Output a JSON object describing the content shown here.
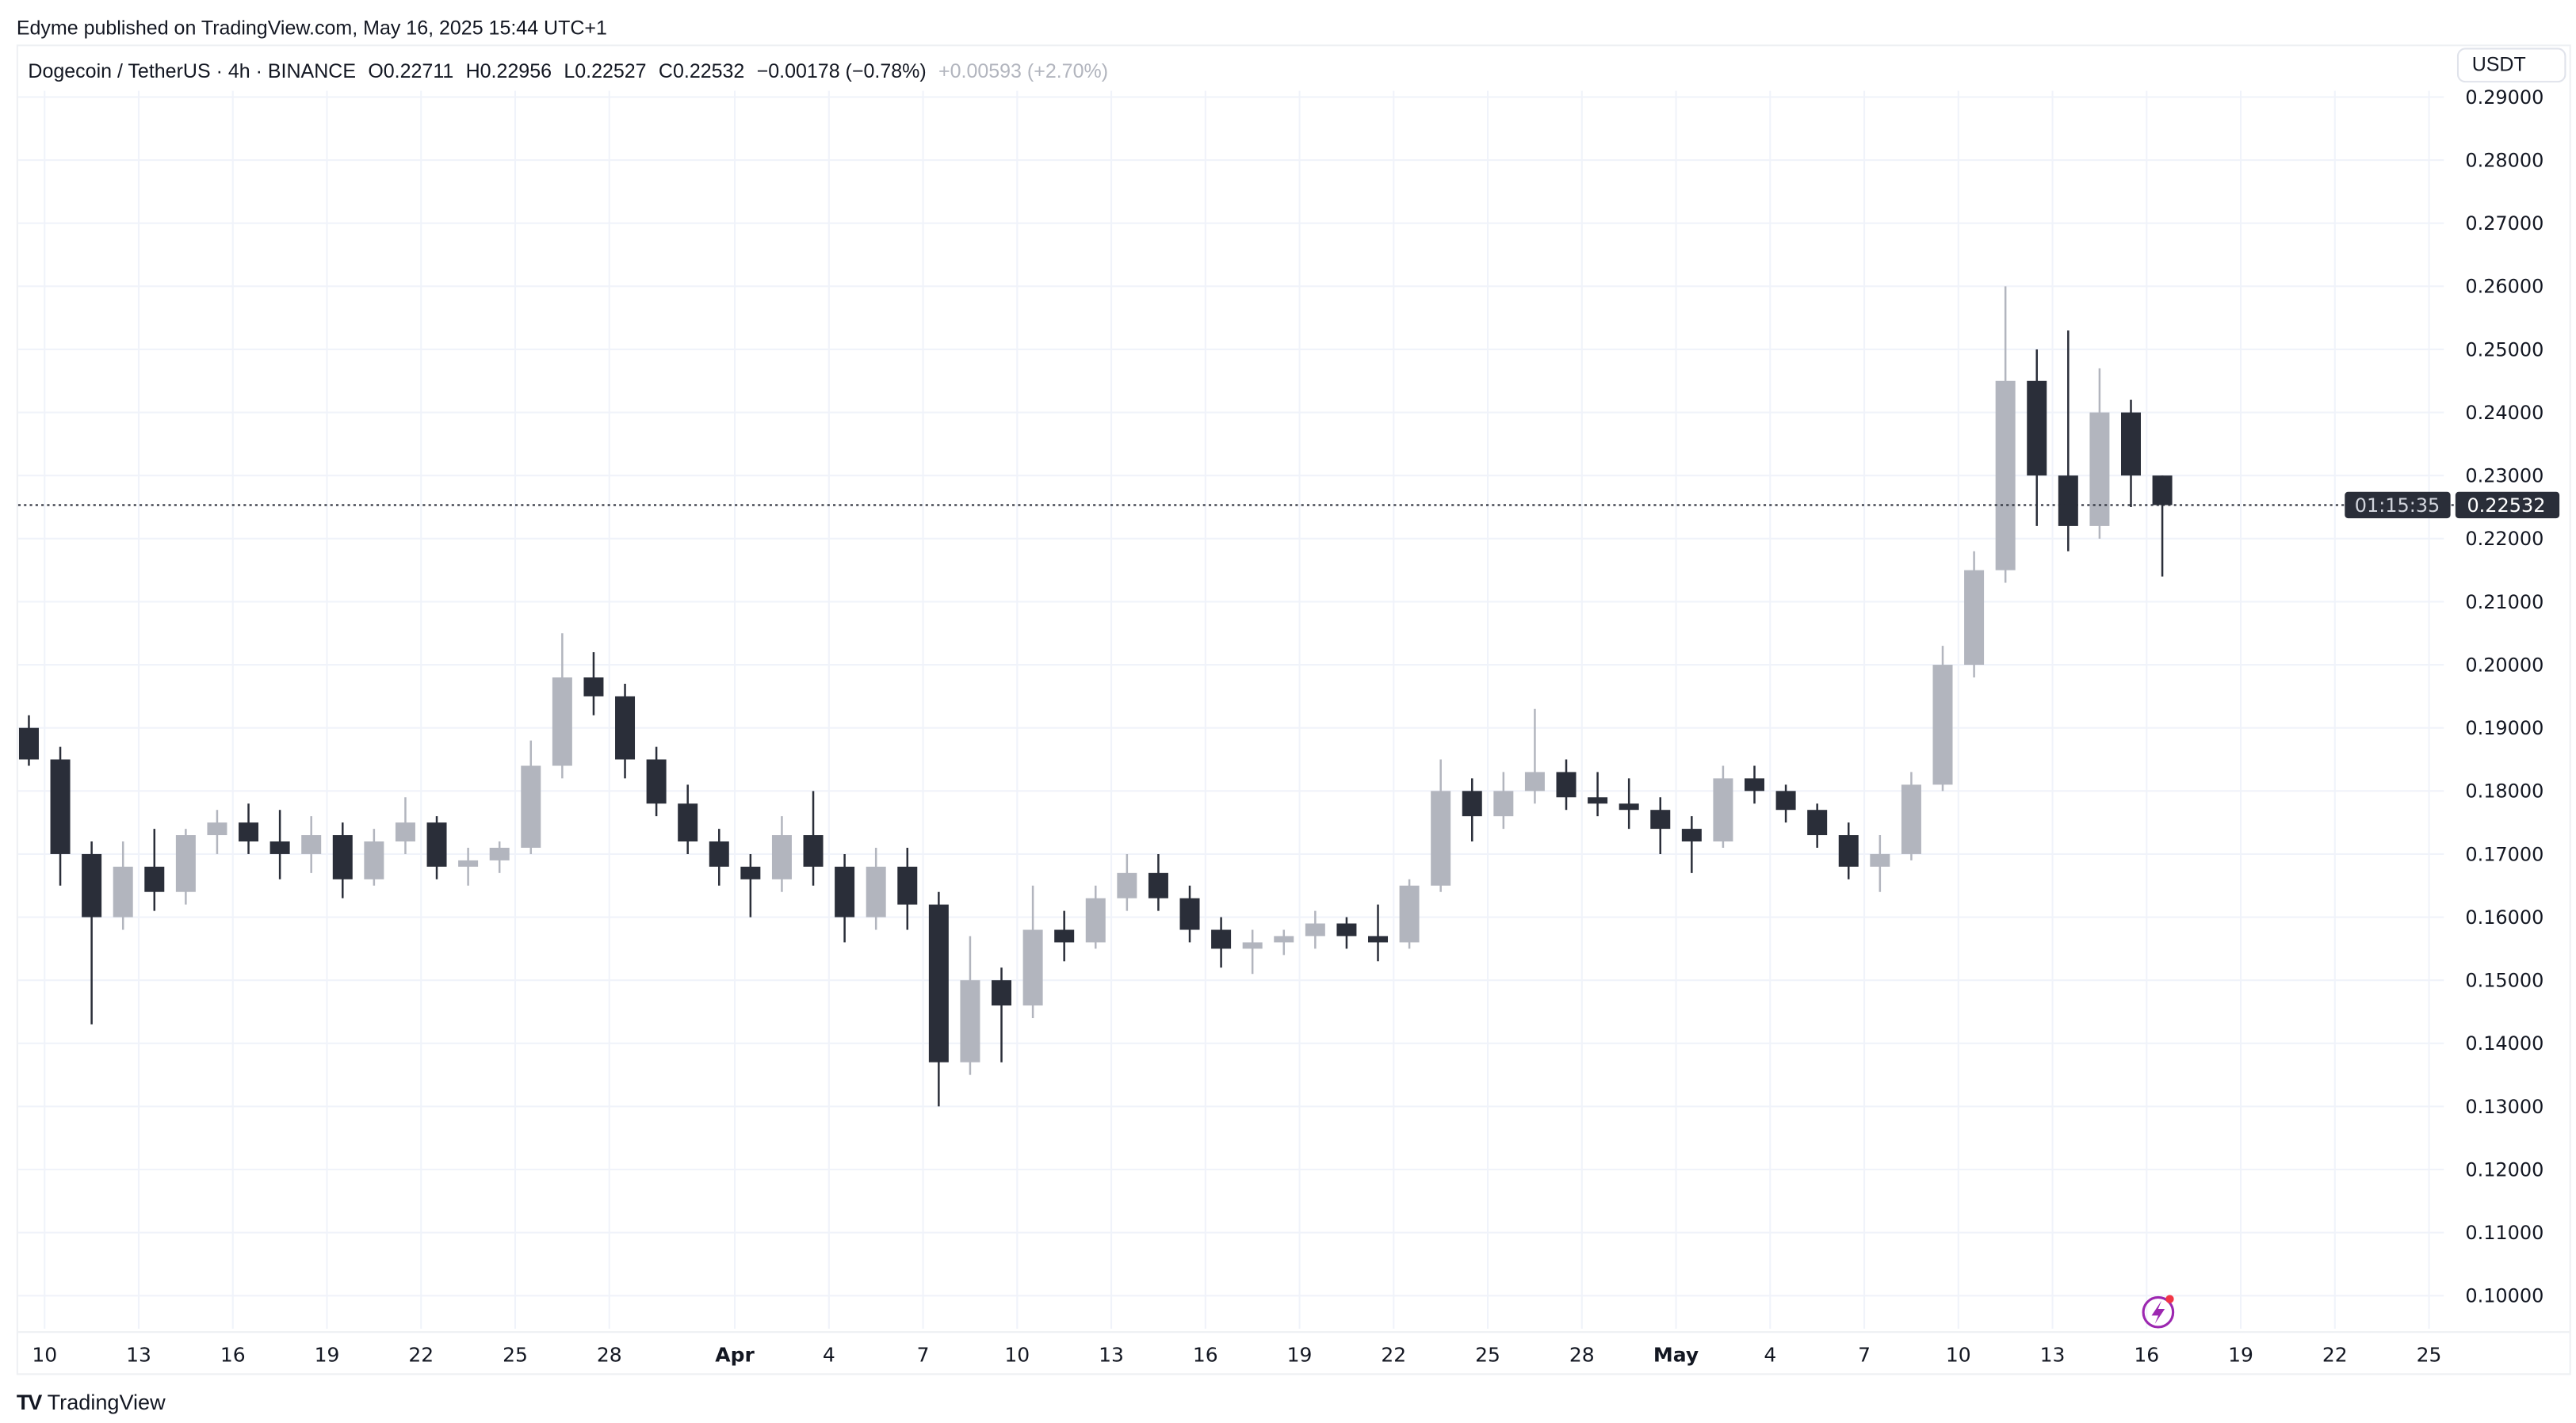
{
  "publisher_line": "Edyme published on TradingView.com, May 16, 2025 15:44 UTC+1",
  "legend": {
    "symbol": "Dogecoin / TetherUS · 4h · BINANCE",
    "open": "O0.22711",
    "high": "H0.22956",
    "low": "L0.22527",
    "close": "C0.22532",
    "change": "−0.00178 (−0.78%)",
    "extra_change": "+0.00593 (+2.70%)"
  },
  "currency_button": "USDT",
  "current_price": {
    "price": "0.22532",
    "countdown": "01:15:35",
    "value": 0.22532
  },
  "branding": {
    "logo_text": "TradingView"
  },
  "colors": {
    "bull": "#b2b5be",
    "bear": "#2a2e39",
    "grid": "#f0f3fa",
    "price_label_bg": "#2a2e39",
    "alert_icon": "#9c27b0"
  },
  "chart_data": {
    "type": "candlestick",
    "note_resolution": "daily approximation of 4h candles",
    "ylim": [
      0.095,
      0.292
    ],
    "y_ticks": [
      "0.29000",
      "0.28000",
      "0.27000",
      "0.26000",
      "0.25000",
      "0.24000",
      "0.23000",
      "0.22000",
      "0.21000",
      "0.20000",
      "0.19000",
      "0.18000",
      "0.17000",
      "0.16000",
      "0.15000",
      "0.14000",
      "0.13000",
      "0.12000",
      "0.11000",
      "0.10000"
    ],
    "x_ticks": [
      {
        "label": "10",
        "date": "2025-03-10"
      },
      {
        "label": "13",
        "date": "2025-03-13"
      },
      {
        "label": "16",
        "date": "2025-03-16"
      },
      {
        "label": "19",
        "date": "2025-03-19"
      },
      {
        "label": "22",
        "date": "2025-03-22"
      },
      {
        "label": "25",
        "date": "2025-03-25"
      },
      {
        "label": "28",
        "date": "2025-03-28"
      },
      {
        "label": "Apr",
        "date": "2025-04-01"
      },
      {
        "label": "4",
        "date": "2025-04-04"
      },
      {
        "label": "7",
        "date": "2025-04-07"
      },
      {
        "label": "10",
        "date": "2025-04-10"
      },
      {
        "label": "13",
        "date": "2025-04-13"
      },
      {
        "label": "16",
        "date": "2025-04-16"
      },
      {
        "label": "19",
        "date": "2025-04-19"
      },
      {
        "label": "22",
        "date": "2025-04-22"
      },
      {
        "label": "25",
        "date": "2025-04-25"
      },
      {
        "label": "28",
        "date": "2025-04-28"
      },
      {
        "label": "May",
        "date": "2025-05-01"
      },
      {
        "label": "4",
        "date": "2025-05-04"
      },
      {
        "label": "7",
        "date": "2025-05-07"
      },
      {
        "label": "10",
        "date": "2025-05-10"
      },
      {
        "label": "13",
        "date": "2025-05-13"
      },
      {
        "label": "16",
        "date": "2025-05-16"
      },
      {
        "label": "19",
        "date": "2025-05-19"
      },
      {
        "label": "22",
        "date": "2025-05-22"
      },
      {
        "label": "25",
        "date": "2025-05-25"
      }
    ],
    "candles": [
      [
        "2025-03-09",
        0.19,
        0.192,
        0.184,
        0.185
      ],
      [
        "2025-03-10",
        0.185,
        0.187,
        0.165,
        0.17
      ],
      [
        "2025-03-11",
        0.17,
        0.172,
        0.143,
        0.16
      ],
      [
        "2025-03-12",
        0.16,
        0.172,
        0.158,
        0.168
      ],
      [
        "2025-03-13",
        0.168,
        0.174,
        0.161,
        0.164
      ],
      [
        "2025-03-14",
        0.164,
        0.174,
        0.162,
        0.173
      ],
      [
        "2025-03-15",
        0.173,
        0.177,
        0.17,
        0.175
      ],
      [
        "2025-03-16",
        0.175,
        0.178,
        0.17,
        0.172
      ],
      [
        "2025-03-17",
        0.172,
        0.177,
        0.166,
        0.17
      ],
      [
        "2025-03-18",
        0.17,
        0.176,
        0.167,
        0.173
      ],
      [
        "2025-03-19",
        0.173,
        0.175,
        0.163,
        0.166
      ],
      [
        "2025-03-20",
        0.166,
        0.174,
        0.165,
        0.172
      ],
      [
        "2025-03-21",
        0.172,
        0.179,
        0.17,
        0.175
      ],
      [
        "2025-03-22",
        0.175,
        0.176,
        0.166,
        0.168
      ],
      [
        "2025-03-23",
        0.168,
        0.171,
        0.165,
        0.169
      ],
      [
        "2025-03-24",
        0.169,
        0.172,
        0.167,
        0.171
      ],
      [
        "2025-03-25",
        0.171,
        0.188,
        0.17,
        0.184
      ],
      [
        "2025-03-26",
        0.184,
        0.205,
        0.182,
        0.198
      ],
      [
        "2025-03-27",
        0.198,
        0.202,
        0.192,
        0.195
      ],
      [
        "2025-03-28",
        0.195,
        0.197,
        0.182,
        0.185
      ],
      [
        "2025-03-29",
        0.185,
        0.187,
        0.176,
        0.178
      ],
      [
        "2025-03-30",
        0.178,
        0.181,
        0.17,
        0.172
      ],
      [
        "2025-03-31",
        0.172,
        0.174,
        0.165,
        0.168
      ],
      [
        "2025-04-01",
        0.168,
        0.17,
        0.16,
        0.166
      ],
      [
        "2025-04-02",
        0.166,
        0.176,
        0.164,
        0.173
      ],
      [
        "2025-04-03",
        0.173,
        0.18,
        0.165,
        0.168
      ],
      [
        "2025-04-04",
        0.168,
        0.17,
        0.156,
        0.16
      ],
      [
        "2025-04-05",
        0.16,
        0.171,
        0.158,
        0.168
      ],
      [
        "2025-04-06",
        0.168,
        0.171,
        0.158,
        0.162
      ],
      [
        "2025-04-07",
        0.162,
        0.164,
        0.13,
        0.137
      ],
      [
        "2025-04-08",
        0.137,
        0.157,
        0.135,
        0.15
      ],
      [
        "2025-04-09",
        0.15,
        0.152,
        0.137,
        0.146
      ],
      [
        "2025-04-10",
        0.146,
        0.165,
        0.144,
        0.158
      ],
      [
        "2025-04-11",
        0.158,
        0.161,
        0.153,
        0.156
      ],
      [
        "2025-04-12",
        0.156,
        0.165,
        0.155,
        0.163
      ],
      [
        "2025-04-13",
        0.163,
        0.17,
        0.161,
        0.167
      ],
      [
        "2025-04-14",
        0.167,
        0.17,
        0.161,
        0.163
      ],
      [
        "2025-04-15",
        0.163,
        0.165,
        0.156,
        0.158
      ],
      [
        "2025-04-16",
        0.158,
        0.16,
        0.152,
        0.155
      ],
      [
        "2025-04-17",
        0.155,
        0.158,
        0.151,
        0.156
      ],
      [
        "2025-04-18",
        0.156,
        0.158,
        0.154,
        0.157
      ],
      [
        "2025-04-19",
        0.157,
        0.161,
        0.155,
        0.159
      ],
      [
        "2025-04-20",
        0.159,
        0.16,
        0.155,
        0.157
      ],
      [
        "2025-04-21",
        0.157,
        0.162,
        0.153,
        0.156
      ],
      [
        "2025-04-22",
        0.156,
        0.166,
        0.155,
        0.165
      ],
      [
        "2025-04-23",
        0.165,
        0.185,
        0.164,
        0.18
      ],
      [
        "2025-04-24",
        0.18,
        0.182,
        0.172,
        0.176
      ],
      [
        "2025-04-25",
        0.176,
        0.183,
        0.174,
        0.18
      ],
      [
        "2025-04-26",
        0.18,
        0.193,
        0.178,
        0.183
      ],
      [
        "2025-04-27",
        0.183,
        0.185,
        0.177,
        0.179
      ],
      [
        "2025-04-28",
        0.179,
        0.183,
        0.176,
        0.178
      ],
      [
        "2025-04-29",
        0.178,
        0.182,
        0.174,
        0.177
      ],
      [
        "2025-04-30",
        0.177,
        0.179,
        0.17,
        0.174
      ],
      [
        "2025-05-01",
        0.174,
        0.176,
        0.167,
        0.172
      ],
      [
        "2025-05-02",
        0.172,
        0.184,
        0.171,
        0.182
      ],
      [
        "2025-05-03",
        0.182,
        0.184,
        0.178,
        0.18
      ],
      [
        "2025-05-04",
        0.18,
        0.181,
        0.175,
        0.177
      ],
      [
        "2025-05-05",
        0.177,
        0.178,
        0.171,
        0.173
      ],
      [
        "2025-05-06",
        0.173,
        0.175,
        0.166,
        0.168
      ],
      [
        "2025-05-07",
        0.168,
        0.173,
        0.164,
        0.17
      ],
      [
        "2025-05-08",
        0.17,
        0.183,
        0.169,
        0.181
      ],
      [
        "2025-05-09",
        0.181,
        0.203,
        0.18,
        0.2
      ],
      [
        "2025-05-10",
        0.2,
        0.218,
        0.198,
        0.215
      ],
      [
        "2025-05-11",
        0.215,
        0.26,
        0.213,
        0.245
      ],
      [
        "2025-05-12",
        0.245,
        0.25,
        0.222,
        0.23
      ],
      [
        "2025-05-13",
        0.23,
        0.253,
        0.218,
        0.222
      ],
      [
        "2025-05-14",
        0.222,
        0.247,
        0.22,
        0.24
      ],
      [
        "2025-05-15",
        0.24,
        0.242,
        0.225,
        0.23
      ],
      [
        "2025-05-16",
        0.23,
        0.23,
        0.214,
        0.22532
      ]
    ]
  }
}
